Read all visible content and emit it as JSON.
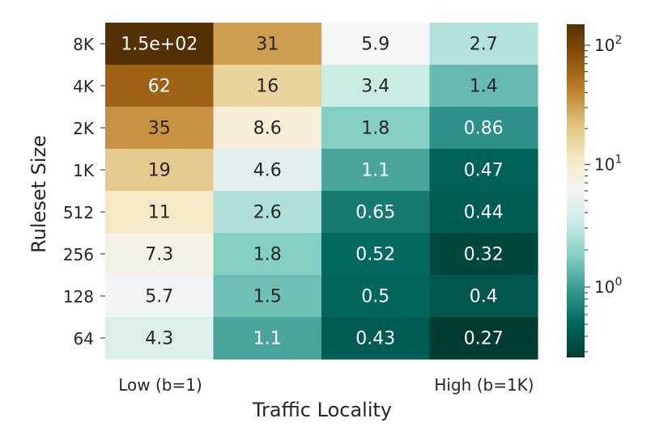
{
  "chart_data": {
    "type": "heatmap",
    "ylabel": "Ruleset Size",
    "xlabel": "Traffic Locality",
    "rows": [
      "8K",
      "4K",
      "2K",
      "1K",
      "512",
      "256",
      "128",
      "64"
    ],
    "x_tick_left": "Low (b=1)",
    "x_tick_right": "High (b=1K)",
    "columns": 4,
    "value_labels": [
      [
        "1.5e+02",
        "31",
        "5.9",
        "2.7"
      ],
      [
        "62",
        "16",
        "3.4",
        "1.4"
      ],
      [
        "35",
        "8.6",
        "1.8",
        "0.86"
      ],
      [
        "19",
        "4.6",
        "1.1",
        "0.47"
      ],
      [
        "11",
        "2.6",
        "0.65",
        "0.44"
      ],
      [
        "7.3",
        "1.8",
        "0.52",
        "0.32"
      ],
      [
        "5.7",
        "1.5",
        "0.5",
        "0.4"
      ],
      [
        "4.3",
        "1.1",
        "0.43",
        "0.27"
      ]
    ],
    "values": [
      [
        150,
        31,
        5.9,
        2.7
      ],
      [
        62,
        16,
        3.4,
        1.4
      ],
      [
        35,
        8.6,
        1.8,
        0.86
      ],
      [
        19,
        4.6,
        1.1,
        0.47
      ],
      [
        11,
        2.6,
        0.65,
        0.44
      ],
      [
        7.3,
        1.8,
        0.52,
        0.32
      ],
      [
        5.7,
        1.5,
        0.5,
        0.4
      ],
      [
        4.3,
        1.1,
        0.43,
        0.27
      ]
    ],
    "colorbar": {
      "scale": "log",
      "range": [
        0.27,
        150
      ],
      "colormap": "BrBG_r",
      "ticks": [
        {
          "base": "10",
          "exp": "2",
          "value": 100
        },
        {
          "base": "10",
          "exp": "1",
          "value": 10
        },
        {
          "base": "10",
          "exp": "0",
          "value": 1
        }
      ],
      "center": 6
    }
  }
}
